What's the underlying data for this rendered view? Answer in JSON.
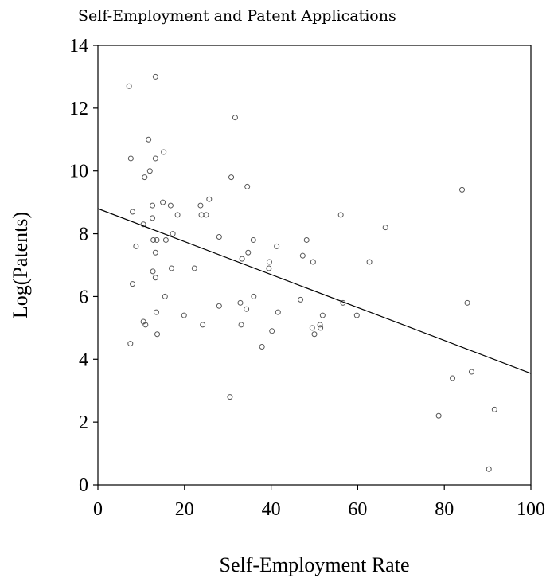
{
  "chart_data": {
    "type": "scatter",
    "title": "Self-Employment and Patent Applications",
    "xlabel": "Self-Employment Rate",
    "ylabel": "Log(Patents)",
    "xlim": [
      0,
      100
    ],
    "ylim": [
      0,
      14
    ],
    "xticks": [
      0,
      20,
      40,
      60,
      80,
      100
    ],
    "yticks": [
      0,
      2,
      4,
      6,
      8,
      10,
      12,
      14
    ],
    "grid": false,
    "series": [
      {
        "points": [
          [
            7.2,
            12.7
          ],
          [
            13.3,
            13.0
          ],
          [
            7.6,
            10.4
          ],
          [
            11.7,
            11.0
          ],
          [
            15.2,
            10.6
          ],
          [
            12.0,
            10.0
          ],
          [
            13.3,
            10.4
          ],
          [
            10.8,
            9.8
          ],
          [
            15.0,
            9.0
          ],
          [
            12.6,
            8.9
          ],
          [
            16.8,
            8.9
          ],
          [
            8.0,
            8.7
          ],
          [
            18.4,
            8.6
          ],
          [
            12.6,
            8.5
          ],
          [
            10.5,
            8.3
          ],
          [
            17.3,
            8.0
          ],
          [
            12.8,
            7.8
          ],
          [
            13.6,
            7.8
          ],
          [
            15.7,
            7.8
          ],
          [
            8.8,
            7.6
          ],
          [
            13.3,
            7.4
          ],
          [
            12.7,
            6.8
          ],
          [
            17.0,
            6.9
          ],
          [
            13.3,
            6.6
          ],
          [
            8.0,
            6.4
          ],
          [
            15.5,
            6.0
          ],
          [
            13.5,
            5.5
          ],
          [
            10.5,
            5.2
          ],
          [
            11.0,
            5.1
          ],
          [
            7.5,
            4.5
          ],
          [
            13.7,
            4.8
          ],
          [
            23.7,
            8.9
          ],
          [
            25.7,
            9.1
          ],
          [
            23.9,
            8.6
          ],
          [
            25.0,
            8.6
          ],
          [
            28.0,
            7.9
          ],
          [
            22.3,
            6.9
          ],
          [
            19.9,
            5.4
          ],
          [
            24.2,
            5.1
          ],
          [
            28.0,
            5.7
          ],
          [
            30.8,
            9.8
          ],
          [
            31.7,
            11.7
          ],
          [
            34.5,
            9.5
          ],
          [
            33.3,
            7.2
          ],
          [
            34.7,
            7.4
          ],
          [
            35.9,
            7.8
          ],
          [
            36.0,
            6.0
          ],
          [
            32.9,
            5.8
          ],
          [
            34.3,
            5.6
          ],
          [
            33.1,
            5.1
          ],
          [
            30.5,
            2.8
          ],
          [
            37.9,
            4.4
          ],
          [
            39.6,
            7.1
          ],
          [
            39.5,
            6.9
          ],
          [
            41.3,
            7.6
          ],
          [
            41.6,
            5.5
          ],
          [
            40.2,
            4.9
          ],
          [
            47.3,
            7.3
          ],
          [
            48.2,
            7.8
          ],
          [
            49.7,
            7.1
          ],
          [
            46.8,
            5.9
          ],
          [
            51.9,
            5.4
          ],
          [
            51.4,
            5.0
          ],
          [
            51.3,
            5.1
          ],
          [
            49.5,
            5.0
          ],
          [
            50.0,
            4.8
          ],
          [
            56.1,
            8.6
          ],
          [
            56.6,
            5.8
          ],
          [
            59.8,
            5.4
          ],
          [
            62.7,
            7.1
          ],
          [
            66.4,
            8.2
          ],
          [
            84.1,
            9.4
          ],
          [
            85.3,
            5.8
          ],
          [
            86.3,
            3.6
          ],
          [
            81.9,
            3.4
          ],
          [
            78.7,
            2.2
          ],
          [
            91.6,
            2.4
          ],
          [
            90.3,
            0.5
          ]
        ]
      }
    ],
    "fit_line": {
      "x": [
        0,
        100
      ],
      "y": [
        8.8,
        3.55
      ]
    }
  }
}
